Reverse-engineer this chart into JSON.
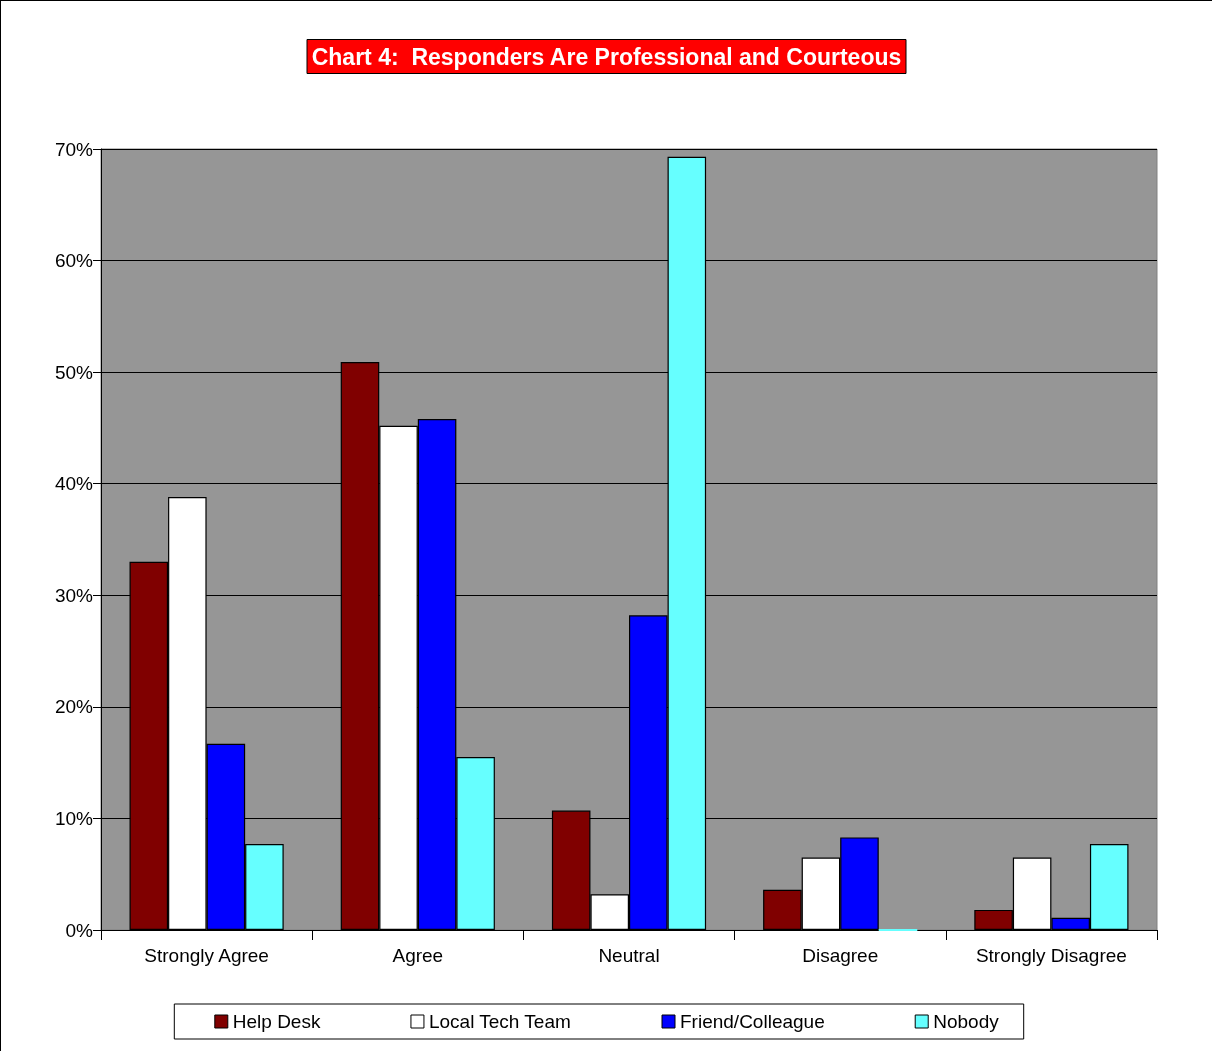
{
  "chart_data": {
    "type": "bar",
    "title": "Chart 4:  Responders Are Professional and Courteous",
    "categories": [
      "Strongly Agree",
      "Agree",
      "Neutral",
      "Disagree",
      "Strongly Disagree"
    ],
    "series": [
      {
        "name": "Help Desk",
        "color": "#800000",
        "values": [
          33.0,
          50.9,
          10.7,
          3.6,
          1.8
        ]
      },
      {
        "name": "Local Tech Team",
        "color": "#ffffff",
        "values": [
          38.8,
          45.2,
          3.2,
          6.5,
          6.5
        ]
      },
      {
        "name": "Friend/Colleague",
        "color": "#0000ff",
        "values": [
          16.7,
          45.8,
          28.2,
          8.3,
          1.1
        ]
      },
      {
        "name": "Nobody",
        "color": "#66ffff",
        "values": [
          7.7,
          15.5,
          69.3,
          0,
          7.7
        ]
      }
    ],
    "ylim": [
      0,
      70
    ],
    "yticks": [
      {
        "value": 0,
        "label": "0%"
      },
      {
        "value": 10,
        "label": "10%"
      },
      {
        "value": 20,
        "label": "20%"
      },
      {
        "value": 30,
        "label": "30%"
      },
      {
        "value": 40,
        "label": "40%"
      },
      {
        "value": 50,
        "label": "50%"
      },
      {
        "value": 60,
        "label": "60%"
      },
      {
        "value": 70,
        "label": "70%"
      }
    ],
    "grid": "y",
    "legend": "bottom"
  }
}
